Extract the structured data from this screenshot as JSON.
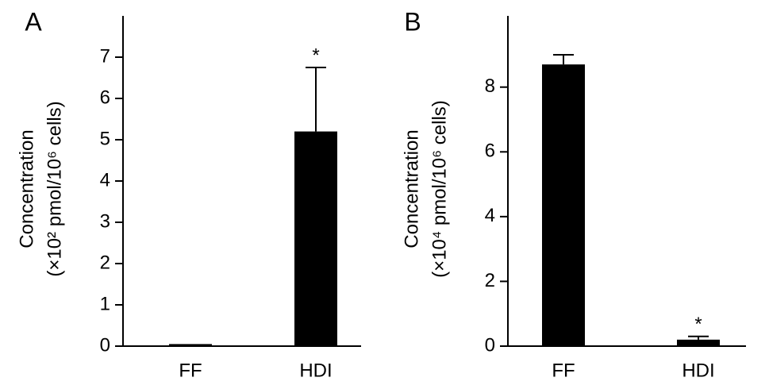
{
  "chart_data": [
    {
      "type": "bar",
      "title": "A",
      "y_label_lines": [
        "Concentration",
        "(×10² pmol/10⁶ cells)"
      ],
      "categories": [
        "FF",
        "HDI"
      ],
      "values": [
        0.05,
        5.2
      ],
      "errors": [
        0,
        1.55
      ],
      "annotations": [
        null,
        "*"
      ],
      "color": "#000000",
      "ylim": [
        0,
        8
      ],
      "yticks": [
        0,
        1,
        2,
        3,
        4,
        5,
        6,
        7
      ]
    },
    {
      "type": "bar",
      "title": "B",
      "y_label_lines": [
        "Concentration",
        "(×10⁴ pmol/10⁶ cells)"
      ],
      "categories": [
        "FF",
        "HDI"
      ],
      "values": [
        8.7,
        0.2
      ],
      "errors": [
        0.3,
        0.1
      ],
      "annotations": [
        null,
        "*"
      ],
      "color": "#000000",
      "ylim": [
        0,
        10.2
      ],
      "yticks": [
        0,
        2,
        4,
        6,
        8
      ]
    }
  ]
}
